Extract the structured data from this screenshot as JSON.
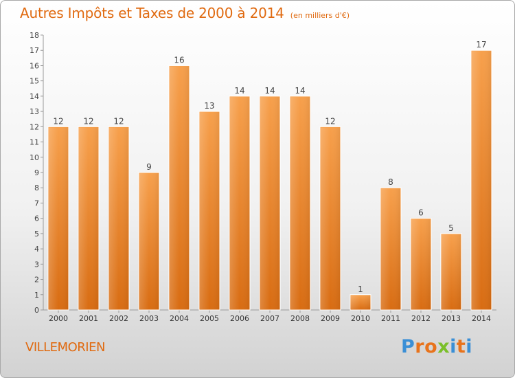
{
  "chart_data": {
    "type": "bar",
    "title": "Autres Impôts et Taxes de 2000 à 2014",
    "subtitle": "(en milliers d'€)",
    "categories": [
      "2000",
      "2001",
      "2002",
      "2003",
      "2004",
      "2005",
      "2006",
      "2007",
      "2008",
      "2009",
      "2010",
      "2011",
      "2012",
      "2013",
      "2014"
    ],
    "values": [
      12,
      12,
      12,
      9,
      16,
      13,
      14,
      14,
      14,
      12,
      1,
      8,
      6,
      5,
      17
    ],
    "ylim": [
      0,
      18
    ],
    "yticks": [
      0,
      1,
      2,
      3,
      4,
      5,
      6,
      7,
      8,
      9,
      10,
      11,
      12,
      13,
      14,
      15,
      16,
      17,
      18
    ],
    "grid": false,
    "bar_color": "#f08a2c"
  },
  "footer": {
    "location": "VILLEMORIEN",
    "logo_text": "Proxiti"
  },
  "colors": {
    "title": "#e06a10",
    "logo_letters": [
      "#3a8fd6",
      "#e8731c",
      "#e8731c",
      "#7abf2a",
      "#3a8fd6",
      "#e8731c",
      "#3a8fd6"
    ]
  }
}
